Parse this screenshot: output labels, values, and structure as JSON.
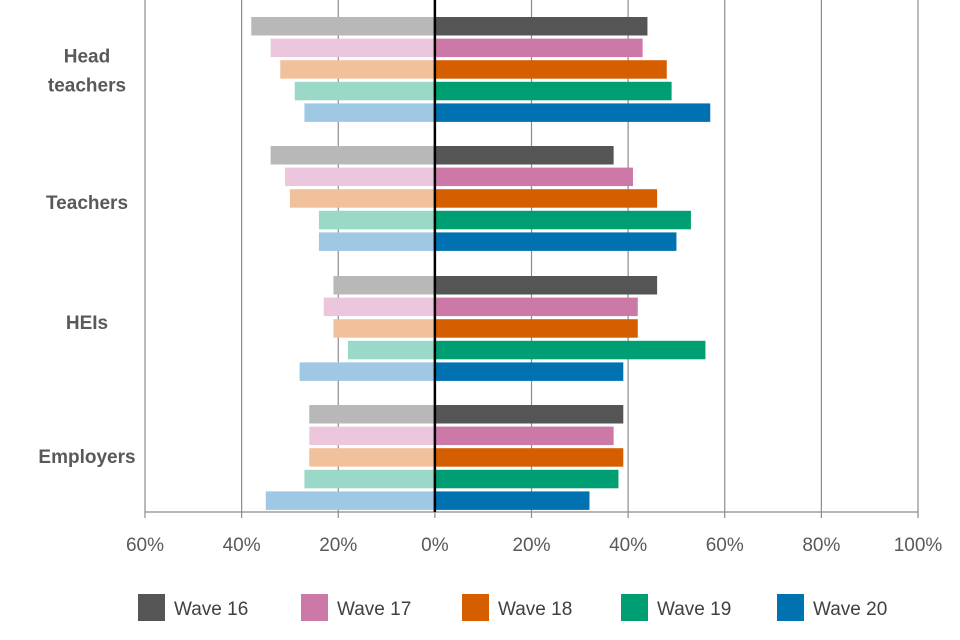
{
  "chart_data": {
    "type": "bar",
    "orientation": "horizontal-diverging",
    "categories": [
      "Head teachers",
      "Teachers",
      "HEIs",
      "Employers"
    ],
    "category_lines": [
      [
        "Head",
        "teachers"
      ],
      [
        "Teachers"
      ],
      [
        "HEIs"
      ],
      [
        "Employers"
      ]
    ],
    "x_ticks": [
      "60%",
      "40%",
      "20%",
      "0%",
      "20%",
      "40%",
      "60%",
      "80%",
      "100%"
    ],
    "xlim": [
      -60,
      100
    ],
    "grid": true,
    "legend_position": "bottom",
    "series": [
      {
        "name": "Wave 16",
        "color": "#555555",
        "light_color": "#b8b8b8",
        "negative": [
          38,
          34,
          21,
          26
        ],
        "positive": [
          44,
          37,
          46,
          39
        ]
      },
      {
        "name": "Wave 17",
        "color": "#cc79a7",
        "light_color": "#ecc6dc",
        "negative": [
          34,
          31,
          23,
          26
        ],
        "positive": [
          43,
          41,
          42,
          37
        ]
      },
      {
        "name": "Wave 18",
        "color": "#d55e00",
        "light_color": "#f1c19b",
        "negative": [
          32,
          30,
          21,
          26
        ],
        "positive": [
          48,
          46,
          42,
          39
        ]
      },
      {
        "name": "Wave 19",
        "color": "#009e73",
        "light_color": "#9ad8c7",
        "negative": [
          29,
          24,
          18,
          27
        ],
        "positive": [
          49,
          53,
          56,
          38
        ]
      },
      {
        "name": "Wave 20",
        "color": "#0072b2",
        "light_color": "#9ec8e3",
        "negative": [
          27,
          24,
          28,
          35
        ],
        "positive": [
          57,
          50,
          39,
          32
        ]
      }
    ]
  }
}
